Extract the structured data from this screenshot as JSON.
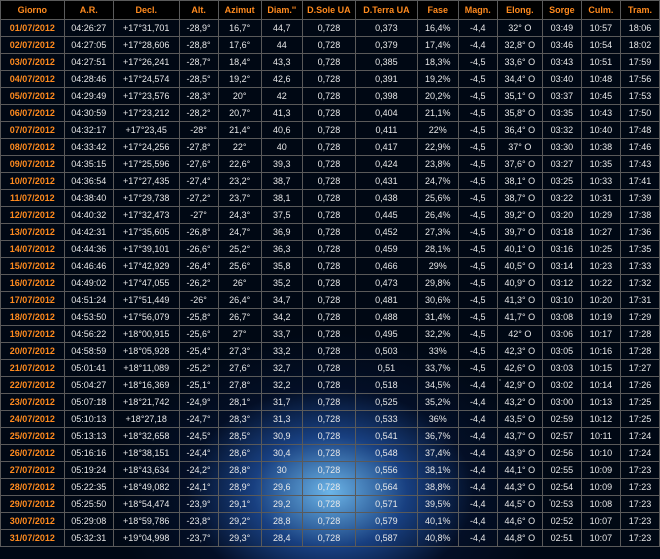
{
  "colors": {
    "header_text": "#ff8a1e",
    "date_text": "#ff8a1e",
    "cell_text": "#e8e8e8",
    "border": "#5a5a5a",
    "header_bg": "#000000"
  },
  "columns": [
    "Giorno",
    "A.R.",
    "Decl.",
    "Alt.",
    "Azimut",
    "Diam.''",
    "D.Sole UA",
    "D.Terra UA",
    "Fase",
    "Magn.",
    "Elong.",
    "Sorge",
    "Culm.",
    "Tram."
  ],
  "rows": [
    [
      "01/07/2012",
      "04:26:27",
      "+17°31,701",
      "-28,9°",
      "16,7°",
      "44,7",
      "0,728",
      "0,373",
      "16,4%",
      "-4,4",
      "32° O",
      "03:49",
      "10:57",
      "18:06"
    ],
    [
      "02/07/2012",
      "04:27:05",
      "+17°28,606",
      "-28,8°",
      "17,6°",
      "44",
      "0,728",
      "0,379",
      "17,4%",
      "-4,4",
      "32,8° O",
      "03:46",
      "10:54",
      "18:02"
    ],
    [
      "03/07/2012",
      "04:27:51",
      "+17°26,241",
      "-28,7°",
      "18,4°",
      "43,3",
      "0,728",
      "0,385",
      "18,3%",
      "-4,5",
      "33,6° O",
      "03:43",
      "10:51",
      "17:59"
    ],
    [
      "04/07/2012",
      "04:28:46",
      "+17°24,574",
      "-28,5°",
      "19,2°",
      "42,6",
      "0,728",
      "0,391",
      "19,2%",
      "-4,5",
      "34,4° O",
      "03:40",
      "10:48",
      "17:56"
    ],
    [
      "05/07/2012",
      "04:29:49",
      "+17°23,576",
      "-28,3°",
      "20°",
      "42",
      "0,728",
      "0,398",
      "20,2%",
      "-4,5",
      "35,1° O",
      "03:37",
      "10:45",
      "17:53"
    ],
    [
      "06/07/2012",
      "04:30:59",
      "+17°23,212",
      "-28,2°",
      "20,7°",
      "41,3",
      "0,728",
      "0,404",
      "21,1%",
      "-4,5",
      "35,8° O",
      "03:35",
      "10:43",
      "17:50"
    ],
    [
      "07/07/2012",
      "04:32:17",
      "+17°23,45",
      "-28°",
      "21,4°",
      "40,6",
      "0,728",
      "0,411",
      "22%",
      "-4,5",
      "36,4° O",
      "03:32",
      "10:40",
      "17:48"
    ],
    [
      "08/07/2012",
      "04:33:42",
      "+17°24,256",
      "-27,8°",
      "22°",
      "40",
      "0,728",
      "0,417",
      "22,9%",
      "-4,5",
      "37° O",
      "03:30",
      "10:38",
      "17:46"
    ],
    [
      "09/07/2012",
      "04:35:15",
      "+17°25,596",
      "-27,6°",
      "22,6°",
      "39,3",
      "0,728",
      "0,424",
      "23,8%",
      "-4,5",
      "37,6° O",
      "03:27",
      "10:35",
      "17:43"
    ],
    [
      "10/07/2012",
      "04:36:54",
      "+17°27,435",
      "-27,4°",
      "23,2°",
      "38,7",
      "0,728",
      "0,431",
      "24,7%",
      "-4,5",
      "38,1° O",
      "03:25",
      "10:33",
      "17:41"
    ],
    [
      "11/07/2012",
      "04:38:40",
      "+17°29,738",
      "-27,2°",
      "23,7°",
      "38,1",
      "0,728",
      "0,438",
      "25,6%",
      "-4,5",
      "38,7° O",
      "03:22",
      "10:31",
      "17:39"
    ],
    [
      "12/07/2012",
      "04:40:32",
      "+17°32,473",
      "-27°",
      "24,3°",
      "37,5",
      "0,728",
      "0,445",
      "26,4%",
      "-4,5",
      "39,2° O",
      "03:20",
      "10:29",
      "17:38"
    ],
    [
      "13/07/2012",
      "04:42:31",
      "+17°35,605",
      "-26,8°",
      "24,7°",
      "36,9",
      "0,728",
      "0,452",
      "27,3%",
      "-4,5",
      "39,7° O",
      "03:18",
      "10:27",
      "17:36"
    ],
    [
      "14/07/2012",
      "04:44:36",
      "+17°39,101",
      "-26,6°",
      "25,2°",
      "36,3",
      "0,728",
      "0,459",
      "28,1%",
      "-4,5",
      "40,1° O",
      "03:16",
      "10:25",
      "17:35"
    ],
    [
      "15/07/2012",
      "04:46:46",
      "+17°42,929",
      "-26,4°",
      "25,6°",
      "35,8",
      "0,728",
      "0,466",
      "29%",
      "-4,5",
      "40,5° O",
      "03:14",
      "10:23",
      "17:33"
    ],
    [
      "16/07/2012",
      "04:49:02",
      "+17°47,055",
      "-26,2°",
      "26°",
      "35,2",
      "0,728",
      "0,473",
      "29,8%",
      "-4,5",
      "40,9° O",
      "03:12",
      "10:22",
      "17:32"
    ],
    [
      "17/07/2012",
      "04:51:24",
      "+17°51,449",
      "-26°",
      "26,4°",
      "34,7",
      "0,728",
      "0,481",
      "30,6%",
      "-4,5",
      "41,3° O",
      "03:10",
      "10:20",
      "17:31"
    ],
    [
      "18/07/2012",
      "04:53:50",
      "+17°56,079",
      "-25,8°",
      "26,7°",
      "34,2",
      "0,728",
      "0,488",
      "31,4%",
      "-4,5",
      "41,7° O",
      "03:08",
      "10:19",
      "17:29"
    ],
    [
      "19/07/2012",
      "04:56:22",
      "+18°00,915",
      "-25,6°",
      "27°",
      "33,7",
      "0,728",
      "0,495",
      "32,2%",
      "-4,5",
      "42° O",
      "03:06",
      "10:17",
      "17:28"
    ],
    [
      "20/07/2012",
      "04:58:59",
      "+18°05,928",
      "-25,4°",
      "27,3°",
      "33,2",
      "0,728",
      "0,503",
      "33%",
      "-4,5",
      "42,3° O",
      "03:05",
      "10:16",
      "17:28"
    ],
    [
      "21/07/2012",
      "05:01:41",
      "+18°11,089",
      "-25,2°",
      "27,6°",
      "32,7",
      "0,728",
      "0,51",
      "33,7%",
      "-4,5",
      "42,6° O",
      "03:03",
      "10:15",
      "17:27"
    ],
    [
      "22/07/2012",
      "05:04:27",
      "+18°16,369",
      "-25,1°",
      "27,8°",
      "32,2",
      "0,728",
      "0,518",
      "34,5%",
      "-4,4",
      "42,9° O",
      "03:02",
      "10:14",
      "17:26"
    ],
    [
      "23/07/2012",
      "05:07:18",
      "+18°21,742",
      "-24,9°",
      "28,1°",
      "31,7",
      "0,728",
      "0,525",
      "35,2%",
      "-4,4",
      "43,2° O",
      "03:00",
      "10:13",
      "17:25"
    ],
    [
      "24/07/2012",
      "05:10:13",
      "+18°27,18",
      "-24,7°",
      "28,3°",
      "31,3",
      "0,728",
      "0,533",
      "36%",
      "-4,4",
      "43,5° O",
      "02:59",
      "10:12",
      "17:25"
    ],
    [
      "25/07/2012",
      "05:13:13",
      "+18°32,658",
      "-24,5°",
      "28,5°",
      "30,9",
      "0,728",
      "0,541",
      "36,7%",
      "-4,4",
      "43,7° O",
      "02:57",
      "10:11",
      "17:24"
    ],
    [
      "26/07/2012",
      "05:16:16",
      "+18°38,151",
      "-24,4°",
      "28,6°",
      "30,4",
      "0,728",
      "0,548",
      "37,4%",
      "-4,4",
      "43,9° O",
      "02:56",
      "10:10",
      "17:24"
    ],
    [
      "27/07/2012",
      "05:19:24",
      "+18°43,634",
      "-24,2°",
      "28,8°",
      "30",
      "0,728",
      "0,556",
      "38,1%",
      "-4,4",
      "44,1° O",
      "02:55",
      "10:09",
      "17:23"
    ],
    [
      "28/07/2012",
      "05:22:35",
      "+18°49,082",
      "-24,1°",
      "28,9°",
      "29,6",
      "0,728",
      "0,564",
      "38,8%",
      "-4,4",
      "44,3° O",
      "02:54",
      "10:09",
      "17:23"
    ],
    [
      "29/07/2012",
      "05:25:50",
      "+18°54,474",
      "-23,9°",
      "29,1°",
      "29,2",
      "0,728",
      "0,571",
      "39,5%",
      "-4,4",
      "44,5° O",
      "02:53",
      "10:08",
      "17:23"
    ],
    [
      "30/07/2012",
      "05:29:08",
      "+18°59,786",
      "-23,8°",
      "29,2°",
      "28,8",
      "0,728",
      "0,579",
      "40,1%",
      "-4,4",
      "44,6° O",
      "02:52",
      "10:07",
      "17:23"
    ],
    [
      "31/07/2012",
      "05:32:31",
      "+19°04,998",
      "-23,7°",
      "29,3°",
      "28,4",
      "0,728",
      "0,587",
      "40,8%",
      "-4,4",
      "44,8° O",
      "02:51",
      "10:07",
      "17:23"
    ]
  ]
}
